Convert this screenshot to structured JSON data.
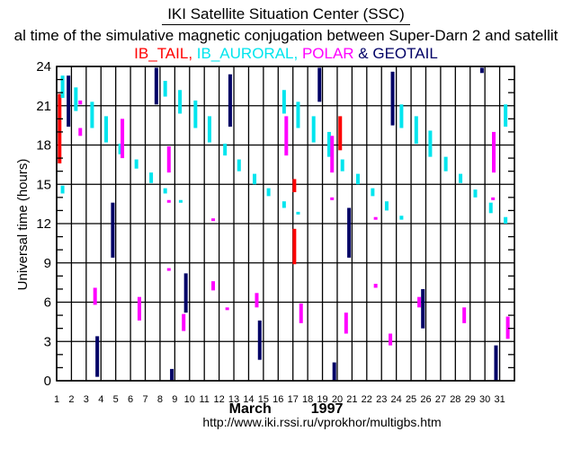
{
  "header": {
    "title": "IKI Satellite Situation Center (SSC)",
    "subtitle": "al time of the simulative magnetic conjugation between Super-Darn 2 and satellit",
    "legend_line": [
      {
        "text": "IB_TAIL,",
        "series": "IB_TAIL"
      },
      {
        "text": " IB_AURORAL,",
        "series": "IB_AURORAL"
      },
      {
        "text": " POLAR",
        "series": "POLAR"
      },
      {
        "text": " & ",
        "series": "sep"
      },
      {
        "text": "GEOTAIL",
        "series": "GEOTAIL"
      }
    ]
  },
  "footer": {
    "month": "March",
    "year": "1997",
    "url": "http://www.iki.rssi.ru/vprokhor/multigbs.htm"
  },
  "colors": {
    "IB_TAIL": "#ff0000",
    "IB_AURORAL": "#00e5ee",
    "POLAR": "#ff00ff",
    "GEOTAIL": "#000066",
    "sep": "#000066",
    "grid": "#000000"
  },
  "chart_data": {
    "type": "scatter",
    "title": "IKI Satellite Situation Center (SSC)",
    "subtitle": "al time of the simulative magnetic conjugation between Super-Darn 2 and satellit",
    "xlabel": "March 1997",
    "ylabel": "Universal time (hours)",
    "xlim": [
      1,
      32
    ],
    "ylim": [
      0,
      24
    ],
    "x_ticks": [
      1,
      2,
      3,
      4,
      5,
      6,
      7,
      8,
      9,
      10,
      11,
      12,
      13,
      14,
      15,
      16,
      17,
      18,
      19,
      20,
      21,
      22,
      23,
      24,
      25,
      26,
      27,
      28,
      29,
      30,
      31
    ],
    "y_ticks": [
      0,
      3,
      6,
      9,
      12,
      15,
      18,
      21,
      24
    ],
    "grid": true,
    "legend": "top",
    "series": [
      {
        "name": "IB_TAIL",
        "intervals": [
          {
            "day": 1.2,
            "start": 16.6,
            "end": 21.9
          },
          {
            "day": 17.1,
            "start": 14.4,
            "end": 15.4
          },
          {
            "day": 17.1,
            "start": 8.9,
            "end": 11.6
          },
          {
            "day": 20.2,
            "start": 17.6,
            "end": 20.2
          }
        ]
      },
      {
        "name": "IB_AURORAL",
        "intervals": [
          {
            "day": 1.4,
            "start": 21.6,
            "end": 23.3
          },
          {
            "day": 1.4,
            "start": 14.3,
            "end": 14.9
          },
          {
            "day": 2.3,
            "start": 20.6,
            "end": 22.4
          },
          {
            "day": 3.4,
            "start": 19.3,
            "end": 21.3
          },
          {
            "day": 4.35,
            "start": 18.2,
            "end": 20.2
          },
          {
            "day": 5.3,
            "start": 17.3,
            "end": 18.1
          },
          {
            "day": 6.4,
            "start": 16.2,
            "end": 16.9
          },
          {
            "day": 7.4,
            "start": 15.1,
            "end": 15.9
          },
          {
            "day": 8.35,
            "start": 21.7,
            "end": 22.9
          },
          {
            "day": 8.35,
            "start": 14.3,
            "end": 14.7
          },
          {
            "day": 9.35,
            "start": 20.4,
            "end": 22.2
          },
          {
            "day": 9.4,
            "start": 13.6,
            "end": 13.8
          },
          {
            "day": 10.4,
            "start": 19.3,
            "end": 21.4
          },
          {
            "day": 11.35,
            "start": 18.2,
            "end": 20.2
          },
          {
            "day": 12.4,
            "start": 17.2,
            "end": 18.1
          },
          {
            "day": 13.35,
            "start": 16.0,
            "end": 16.9
          },
          {
            "day": 14.4,
            "start": 15.0,
            "end": 15.8
          },
          {
            "day": 15.35,
            "start": 14.1,
            "end": 14.7
          },
          {
            "day": 16.4,
            "start": 20.4,
            "end": 22.2
          },
          {
            "day": 16.4,
            "start": 13.2,
            "end": 13.7
          },
          {
            "day": 17.35,
            "start": 19.3,
            "end": 21.3
          },
          {
            "day": 17.35,
            "start": 12.7,
            "end": 12.9
          },
          {
            "day": 18.4,
            "start": 18.2,
            "end": 20.2
          },
          {
            "day": 19.45,
            "start": 17.1,
            "end": 19.0
          },
          {
            "day": 20.35,
            "start": 16.0,
            "end": 16.9
          },
          {
            "day": 21.4,
            "start": 15.0,
            "end": 15.8
          },
          {
            "day": 22.4,
            "start": 14.1,
            "end": 14.7
          },
          {
            "day": 23.35,
            "start": 13.0,
            "end": 13.7
          },
          {
            "day": 24.35,
            "start": 19.3,
            "end": 21.1
          },
          {
            "day": 24.35,
            "start": 12.3,
            "end": 12.6
          },
          {
            "day": 25.35,
            "start": 18.1,
            "end": 20.2
          },
          {
            "day": 26.3,
            "start": 17.1,
            "end": 19.1
          },
          {
            "day": 27.35,
            "start": 16.0,
            "end": 17.1
          },
          {
            "day": 28.35,
            "start": 15.1,
            "end": 15.8
          },
          {
            "day": 29.35,
            "start": 14.0,
            "end": 14.6
          },
          {
            "day": 30.4,
            "start": 12.8,
            "end": 13.6
          },
          {
            "day": 31.4,
            "start": 19.4,
            "end": 21.1
          },
          {
            "day": 31.4,
            "start": 12.0,
            "end": 12.5
          }
        ]
      },
      {
        "name": "POLAR",
        "intervals": [
          {
            "day": 2.6,
            "start": 21.1,
            "end": 21.4
          },
          {
            "day": 2.6,
            "start": 18.7,
            "end": 19.3
          },
          {
            "day": 3.6,
            "start": 5.8,
            "end": 7.1
          },
          {
            "day": 5.45,
            "start": 17.0,
            "end": 20.0
          },
          {
            "day": 6.6,
            "start": 4.6,
            "end": 6.4
          },
          {
            "day": 8.6,
            "start": 15.9,
            "end": 17.9
          },
          {
            "day": 8.6,
            "start": 13.6,
            "end": 13.8
          },
          {
            "day": 8.6,
            "start": 8.4,
            "end": 8.6
          },
          {
            "day": 9.6,
            "start": 3.8,
            "end": 5.1
          },
          {
            "day": 11.6,
            "start": 12.2,
            "end": 12.4
          },
          {
            "day": 11.6,
            "start": 6.9,
            "end": 7.6
          },
          {
            "day": 12.55,
            "start": 5.4,
            "end": 5.6
          },
          {
            "day": 14.55,
            "start": 5.6,
            "end": 6.7
          },
          {
            "day": 16.55,
            "start": 17.2,
            "end": 20.2
          },
          {
            "day": 17.55,
            "start": 4.4,
            "end": 5.9
          },
          {
            "day": 19.65,
            "start": 15.9,
            "end": 18.7
          },
          {
            "day": 19.65,
            "start": 13.8,
            "end": 14.0
          },
          {
            "day": 20.6,
            "start": 3.6,
            "end": 5.2
          },
          {
            "day": 22.6,
            "start": 12.3,
            "end": 12.5
          },
          {
            "day": 22.6,
            "start": 7.1,
            "end": 7.4
          },
          {
            "day": 23.6,
            "start": 2.7,
            "end": 3.6
          },
          {
            "day": 25.55,
            "start": 5.6,
            "end": 6.4
          },
          {
            "day": 28.6,
            "start": 4.4,
            "end": 5.6
          },
          {
            "day": 30.6,
            "start": 15.9,
            "end": 19.0
          },
          {
            "day": 30.55,
            "start": 13.8,
            "end": 14.0
          },
          {
            "day": 31.55,
            "start": 3.2,
            "end": 4.9
          }
        ]
      },
      {
        "name": "GEOTAIL",
        "intervals": [
          {
            "day": 1.8,
            "start": 19.4,
            "end": 23.3
          },
          {
            "day": 3.75,
            "start": 0.3,
            "end": 3.4
          },
          {
            "day": 4.8,
            "start": 9.4,
            "end": 13.6
          },
          {
            "day": 7.75,
            "start": 21.1,
            "end": 23.9
          },
          {
            "day": 8.8,
            "start": 0.0,
            "end": 0.9
          },
          {
            "day": 9.75,
            "start": 5.2,
            "end": 8.2
          },
          {
            "day": 12.75,
            "start": 19.4,
            "end": 23.4
          },
          {
            "day": 14.75,
            "start": 1.6,
            "end": 4.6
          },
          {
            "day": 18.8,
            "start": 21.3,
            "end": 23.9
          },
          {
            "day": 19.8,
            "start": 0.0,
            "end": 1.4
          },
          {
            "day": 20.8,
            "start": 9.4,
            "end": 13.2
          },
          {
            "day": 23.75,
            "start": 19.5,
            "end": 23.6
          },
          {
            "day": 25.8,
            "start": 4.0,
            "end": 7.0
          },
          {
            "day": 29.8,
            "start": 23.5,
            "end": 23.9
          },
          {
            "day": 30.75,
            "start": 0.0,
            "end": 2.7
          }
        ]
      }
    ]
  }
}
